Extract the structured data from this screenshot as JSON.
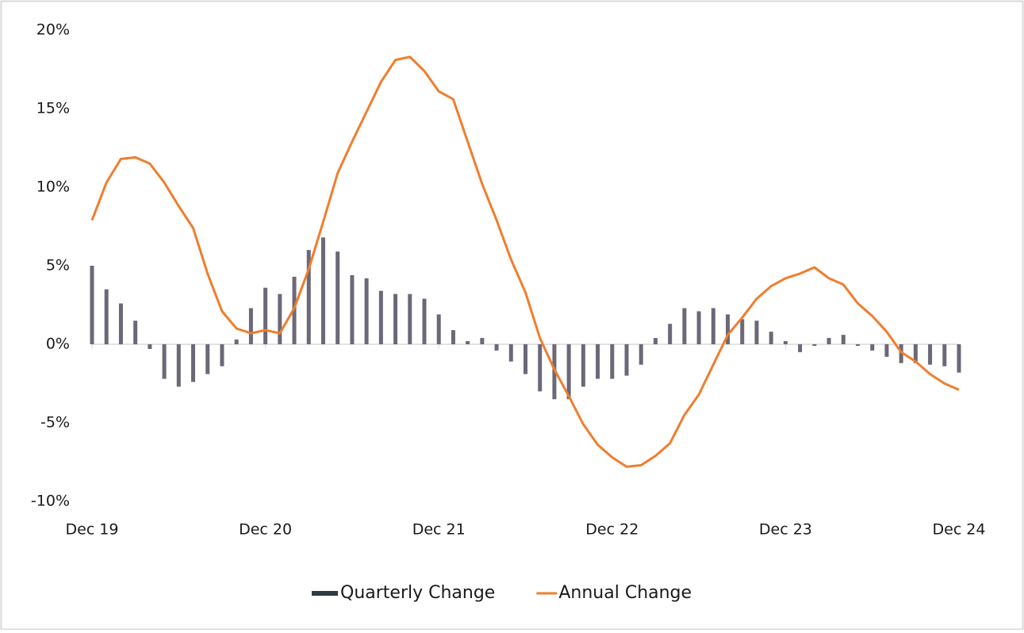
{
  "chart_data": {
    "type": "bar_line",
    "categories": [
      "Dec 19",
      null,
      null,
      null,
      null,
      null,
      null,
      null,
      null,
      null,
      null,
      null,
      "Dec 20",
      null,
      null,
      null,
      null,
      null,
      null,
      null,
      null,
      null,
      null,
      null,
      "Dec 21",
      null,
      null,
      null,
      null,
      null,
      null,
      null,
      null,
      null,
      null,
      null,
      "Dec 22",
      null,
      null,
      null,
      null,
      null,
      null,
      null,
      null,
      null,
      null,
      null,
      "Dec 23",
      null,
      null,
      null,
      null,
      null,
      null,
      null,
      null,
      null,
      null,
      null,
      "Dec 24"
    ],
    "series": [
      {
        "name": "Quarterly Change",
        "type": "bar",
        "color": "#6c6878",
        "legend_color": "#2e3b41",
        "values": [
          5.0,
          3.5,
          2.6,
          1.5,
          -0.3,
          -2.2,
          -2.7,
          -2.4,
          -1.9,
          -1.4,
          0.3,
          2.3,
          3.6,
          3.2,
          4.3,
          6.0,
          6.8,
          5.9,
          4.4,
          4.2,
          3.4,
          3.2,
          3.2,
          2.9,
          1.9,
          0.9,
          0.2,
          0.4,
          -0.4,
          -1.1,
          -1.9,
          -3.0,
          -3.5,
          -3.5,
          -2.7,
          -2.2,
          -2.2,
          -2.0,
          -1.3,
          0.4,
          1.3,
          2.3,
          2.1,
          2.3,
          1.9,
          1.6,
          1.5,
          0.8,
          0.2,
          -0.5,
          -0.1,
          0.4,
          0.6,
          -0.1,
          -0.4,
          -0.8,
          -1.2,
          -1.2,
          -1.3,
          -1.4,
          -1.8
        ]
      },
      {
        "name": "Annual Change",
        "type": "line",
        "color": "#f07d2e",
        "values": [
          7.9,
          10.3,
          11.8,
          11.9,
          11.5,
          10.3,
          8.8,
          7.4,
          4.5,
          2.1,
          1.0,
          0.7,
          0.9,
          0.7,
          2.3,
          4.8,
          7.8,
          10.9,
          12.9,
          14.8,
          16.7,
          18.1,
          18.3,
          17.4,
          16.1,
          15.6,
          12.9,
          10.2,
          7.9,
          5.4,
          3.3,
          0.4,
          -1.6,
          -3.3,
          -5.1,
          -6.4,
          -7.2,
          -7.8,
          -7.7,
          -7.1,
          -6.3,
          -4.5,
          -3.2,
          -1.3,
          0.6,
          1.7,
          2.9,
          3.7,
          4.2,
          4.5,
          4.9,
          4.2,
          3.8,
          2.6,
          1.8,
          0.8,
          -0.5,
          -1.1,
          -1.9,
          -2.5,
          -2.9
        ]
      }
    ],
    "ylim": [
      -10,
      20
    ],
    "yticks": [
      {
        "value": -10,
        "label": "-10%"
      },
      {
        "value": -5,
        "label": "-5%"
      },
      {
        "value": 0,
        "label": "0%"
      },
      {
        "value": 5,
        "label": "5%"
      },
      {
        "value": 10,
        "label": "10%"
      },
      {
        "value": 15,
        "label": "15%"
      },
      {
        "value": 20,
        "label": "20%"
      }
    ],
    "grid": false,
    "legend": "bottom"
  }
}
